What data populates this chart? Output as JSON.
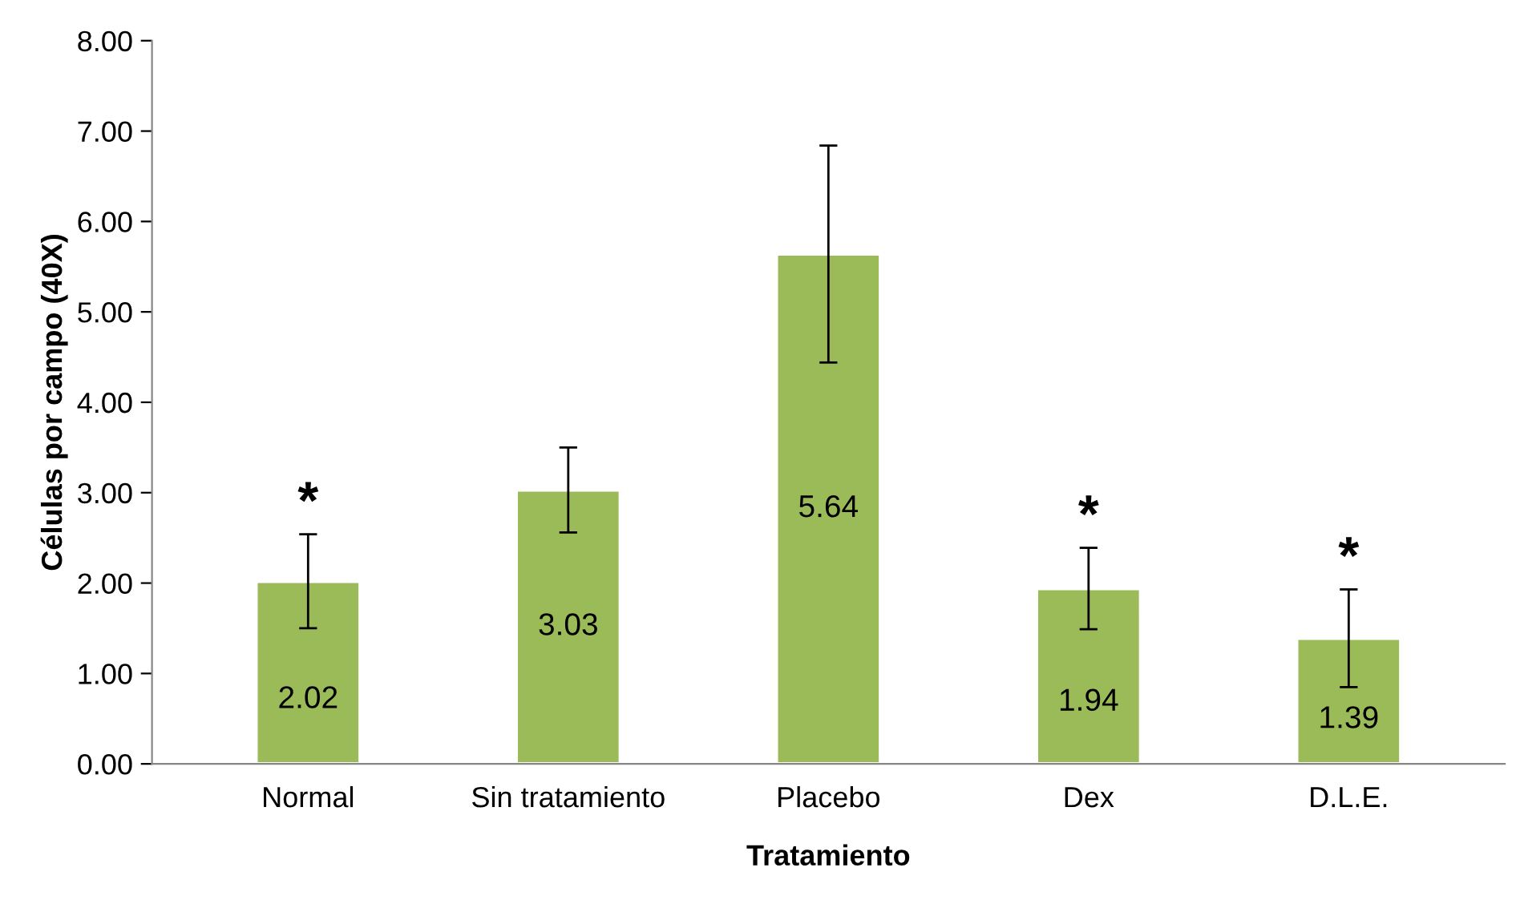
{
  "chart_data": {
    "type": "bar",
    "xlabel": "Tratamiento",
    "ylabel": "Células por campo (40X)",
    "categories": [
      "Normal",
      "Sin tratamiento",
      "Placebo",
      "Dex",
      "D.L.E."
    ],
    "values": [
      2.02,
      3.03,
      5.64,
      1.94,
      1.39
    ],
    "errors": [
      0.52,
      0.47,
      1.2,
      0.45,
      0.54
    ],
    "color": "#9bbb59",
    "data_labels": true,
    "grid": false,
    "legend": false,
    "ylim": [
      0,
      8
    ],
    "yticks": [
      {
        "value": 0,
        "label": "0.00"
      },
      {
        "value": 1,
        "label": "1.00"
      },
      {
        "value": 2,
        "label": "2.00"
      },
      {
        "value": 3,
        "label": "3.00"
      },
      {
        "value": 4,
        "label": "4.00"
      },
      {
        "value": 5,
        "label": "5.00"
      },
      {
        "value": 6,
        "label": "6.00"
      },
      {
        "value": 7,
        "label": "7.00"
      },
      {
        "value": 8,
        "label": "8.00"
      }
    ],
    "annotations": [
      {
        "text": "*",
        "x": "Normal",
        "y": 2.54
      },
      {
        "text": "*",
        "x": "Dex",
        "y": 2.39
      },
      {
        "text": "*",
        "x": "D.L.E.",
        "y": 1.93
      }
    ]
  }
}
